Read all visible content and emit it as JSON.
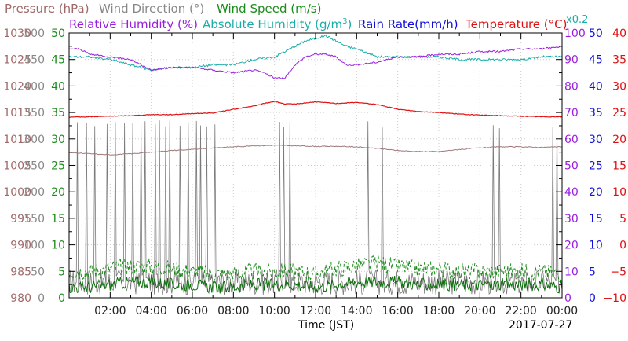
{
  "chart_data": {
    "type": "line",
    "date_label": "2017-07-27",
    "xlabel": "Time (JST)",
    "xlim": [
      0,
      24
    ],
    "x_ticks": [
      "02:00",
      "04:00",
      "06:00",
      "08:00",
      "10:00",
      "12:00",
      "14:00",
      "16:00",
      "18:00",
      "20:00",
      "22:00",
      "00:00"
    ],
    "axes": {
      "pressure": {
        "label": "Pressure (hPa)",
        "range": [
          980,
          1030
        ],
        "ticks": [
          "980",
          "985",
          "990",
          "995",
          "1000",
          "1005",
          "1010",
          "1015",
          "1020",
          "1025",
          "1030"
        ],
        "color": "#a06868"
      },
      "wind_direction": {
        "label": "Wind Direction (°)",
        "range": [
          0,
          500
        ],
        "ticks": [
          "0",
          "50",
          "100",
          "150",
          "200",
          "250",
          "300",
          "350",
          "400",
          "450",
          "500"
        ],
        "color": "#888888"
      },
      "wind_speed": {
        "label": "Wind Speed (m/s)",
        "range": [
          0,
          50
        ],
        "ticks": [
          "0",
          "5",
          "10",
          "15",
          "20",
          "25",
          "30",
          "35",
          "40",
          "45",
          "50"
        ],
        "color": "#1c8c1c"
      },
      "relative_humidity": {
        "label": "Relative Humidity (%)",
        "range": [
          0,
          100
        ],
        "ticks": [
          "0",
          "10",
          "20",
          "30",
          "40",
          "50",
          "60",
          "70",
          "80",
          "90",
          "100"
        ],
        "color": "#9a1ee0"
      },
      "absolute_humidity": {
        "label_main": "Absolute Humidity (g/m",
        "label_sup": "3",
        "label_end": ")",
        "scale_note": "x0.2",
        "color": "#1aada8"
      },
      "rain_rate": {
        "label": "Rain Rate(mm/h)",
        "range": [
          0,
          50
        ],
        "ticks": [
          "0",
          "5",
          "10",
          "15",
          "20",
          "25",
          "30",
          "35",
          "40",
          "45",
          "50"
        ],
        "color": "#1010d8"
      },
      "temperature": {
        "label": "Temperature (°C)",
        "range": [
          -10,
          40
        ],
        "ticks": [
          "−10",
          "−5",
          "0",
          "5",
          "10",
          "15",
          "20",
          "25",
          "30",
          "35",
          "40"
        ],
        "color": "#e01010"
      }
    },
    "series": [
      {
        "name": "Temperature (°C)",
        "axis": "temperature",
        "x": [
          0,
          1,
          2,
          3,
          4,
          5,
          6,
          7,
          8,
          9,
          9.5,
          10,
          10.5,
          11,
          12,
          13,
          14,
          15,
          16,
          17,
          18,
          19,
          20,
          21,
          22,
          23,
          24
        ],
        "y": [
          24.1,
          24.2,
          24.3,
          24.4,
          24.6,
          24.6,
          24.8,
          24.9,
          25.6,
          26.2,
          26.7,
          27.1,
          26.6,
          26.6,
          27.0,
          26.7,
          26.9,
          26.5,
          25.6,
          25.2,
          25.0,
          24.7,
          24.5,
          24.4,
          24.3,
          24.2,
          24.2
        ]
      },
      {
        "name": "Pressure (hPa)",
        "axis": "pressure",
        "x": [
          0,
          1,
          2,
          3,
          4,
          5,
          6,
          7,
          8,
          9,
          10,
          11,
          12,
          13,
          14,
          15,
          16,
          17,
          18,
          19,
          20,
          21,
          22,
          23,
          24
        ],
        "y": [
          1007.4,
          1007.2,
          1007.0,
          1007.2,
          1007.5,
          1007.8,
          1008.0,
          1008.3,
          1008.5,
          1008.7,
          1008.8,
          1008.7,
          1008.6,
          1008.6,
          1008.5,
          1008.2,
          1007.8,
          1007.6,
          1007.6,
          1008.0,
          1008.3,
          1008.5,
          1008.5,
          1008.4,
          1008.5
        ]
      },
      {
        "name": "Relative Humidity (%)",
        "axis": "relative_humidity",
        "x": [
          0,
          0.5,
          1,
          2,
          3,
          4,
          5,
          6,
          7,
          8,
          9,
          9.5,
          10,
          10.5,
          11,
          11.5,
          12,
          12.5,
          13,
          13.5,
          14,
          15,
          16,
          17,
          18,
          19,
          20,
          21,
          22,
          23,
          24
        ],
        "y": [
          94,
          94,
          92,
          91,
          90,
          86,
          87,
          87,
          86,
          85,
          86,
          85,
          83,
          83,
          88,
          91,
          92,
          92,
          91,
          88,
          88,
          89,
          91,
          91,
          92,
          92,
          93,
          93,
          94,
          94,
          95
        ]
      },
      {
        "name": "Absolute Humidity (g/m3) x0.2",
        "axis": "relative_humidity",
        "x": [
          0,
          1,
          2,
          3,
          4,
          5,
          6,
          7,
          8,
          9,
          10,
          10.5,
          11,
          11.5,
          12,
          12.5,
          13,
          13.5,
          14,
          15,
          16,
          17,
          18,
          19,
          20,
          21,
          22,
          23,
          24
        ],
        "y": [
          91,
          91,
          90,
          88,
          86,
          87,
          87,
          88,
          88,
          90,
          91,
          93,
          95,
          97,
          98,
          99,
          97,
          95,
          94,
          91,
          91,
          91,
          91,
          90,
          90,
          90,
          90,
          91,
          91
        ]
      },
      {
        "name": "Wind Direction (°)",
        "axis": "wind_direction",
        "spikes_at": [
          0.4,
          0.9,
          1.3,
          1.9,
          2.3,
          2.7,
          3.1,
          3.5,
          3.7,
          4.2,
          4.4,
          4.7,
          4.9,
          5.4,
          5.8,
          6.2,
          6.4,
          6.7,
          7.1,
          10.3,
          10.5,
          10.8,
          14.6,
          15.3,
          20.7,
          21.0,
          23.6,
          23.8
        ],
        "spike_value": 335,
        "baseline": 30
      },
      {
        "name": "Wind Speed (m/s)",
        "axis": "wind_speed",
        "mean": [
          2.0,
          2.0,
          2.5,
          3.0,
          3.0,
          2.5,
          2.5,
          2.0,
          2.0,
          2.5,
          2.5,
          2.5,
          2.0,
          2.5,
          3.0,
          3.0,
          3.0,
          2.5,
          2.5,
          2.5,
          2.5,
          2.5,
          2.5,
          2.5,
          2.0
        ],
        "gust": [
          5.0,
          5.0,
          5.5,
          6.0,
          6.0,
          5.5,
          5.0,
          4.5,
          4.5,
          5.0,
          5.0,
          5.0,
          4.5,
          5.5,
          6.0,
          6.5,
          6.0,
          5.5,
          5.5,
          5.0,
          5.0,
          5.0,
          5.0,
          5.0,
          4.5
        ]
      },
      {
        "name": "Rain Rate(mm/h)",
        "axis": "rain_rate",
        "x": [
          0,
          24
        ],
        "y": [
          0,
          0
        ]
      }
    ],
    "grid": true
  }
}
